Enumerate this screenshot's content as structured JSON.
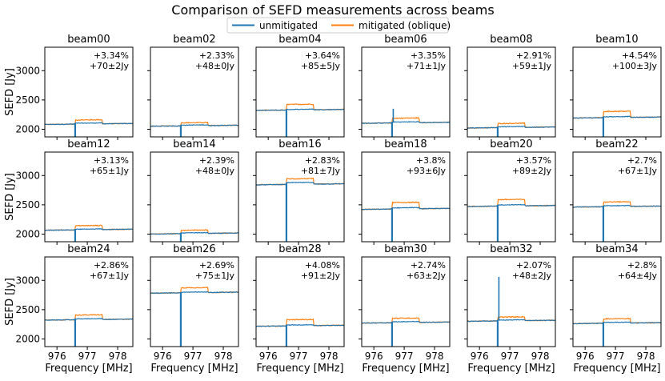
{
  "chart_data": {
    "type": "line",
    "title": "Comparison of SEFD measurements across beams",
    "xlabel": "Frequency [MHz]",
    "ylabel": "SEFD [Jy]",
    "xlim": [
      975.6,
      978.5
    ],
    "ylim": [
      1870,
      3400
    ],
    "xticks": [
      976,
      977,
      978
    ],
    "xtick_labels": [
      "976",
      "977",
      "978"
    ],
    "yticks": [
      2000,
      2500,
      3000
    ],
    "ytick_labels": [
      "2000",
      "2500",
      "3000"
    ],
    "grid": false,
    "legend": {
      "position": "top-center",
      "entries": [
        "unmitigated",
        "mitigated (oblique)"
      ]
    },
    "colors": {
      "unmitigated": "#1f77b4",
      "mitigated": "#ff7f0e"
    },
    "rfi_window_mhz": [
      976.6,
      977.5
    ],
    "rfi_notch_mhz": 976.6,
    "panels": [
      {
        "beam": "beam00",
        "pct": "+3.34%",
        "jy": "+70±2Jy",
        "baseline": 2090,
        "unmitigated": 2105,
        "mitigated": 2160,
        "spike": null
      },
      {
        "beam": "beam02",
        "pct": "+2.33%",
        "jy": "+48±0Jy",
        "baseline": 2060,
        "unmitigated": 2072,
        "mitigated": 2112,
        "spike": null
      },
      {
        "beam": "beam04",
        "pct": "+3.64%",
        "jy": "+85±5Jy",
        "baseline": 2330,
        "unmitigated": 2340,
        "mitigated": 2425,
        "spike": null
      },
      {
        "beam": "beam06",
        "pct": "+3.35%",
        "jy": "+71±1Jy",
        "baseline": 2110,
        "unmitigated": 2125,
        "mitigated": 2190,
        "spike": 2350
      },
      {
        "beam": "beam08",
        "pct": "+2.91%",
        "jy": "+59±1Jy",
        "baseline": 2030,
        "unmitigated": 2045,
        "mitigated": 2100,
        "spike": null
      },
      {
        "beam": "beam10",
        "pct": "+4.54%",
        "jy": "+100±3Jy",
        "baseline": 2200,
        "unmitigated": 2215,
        "mitigated": 2305,
        "spike": null
      },
      {
        "beam": "beam12",
        "pct": "+3.13%",
        "jy": "+65±1Jy",
        "baseline": 2075,
        "unmitigated": 2085,
        "mitigated": 2145,
        "spike": null
      },
      {
        "beam": "beam14",
        "pct": "+2.39%",
        "jy": "+48±0Jy",
        "baseline": 2010,
        "unmitigated": 2022,
        "mitigated": 2068,
        "spike": null
      },
      {
        "beam": "beam16",
        "pct": "+2.83%",
        "jy": "+81±7Jy",
        "baseline": 2850,
        "unmitigated": 2880,
        "mitigated": 2945,
        "spike": null
      },
      {
        "beam": "beam18",
        "pct": "+3.8%",
        "jy": "+93±6Jy",
        "baseline": 2430,
        "unmitigated": 2450,
        "mitigated": 2540,
        "spike": null
      },
      {
        "beam": "beam20",
        "pct": "+3.57%",
        "jy": "+89±2Jy",
        "baseline": 2480,
        "unmitigated": 2500,
        "mitigated": 2590,
        "spike": null
      },
      {
        "beam": "beam22",
        "pct": "+2.7%",
        "jy": "+67±1Jy",
        "baseline": 2470,
        "unmitigated": 2485,
        "mitigated": 2550,
        "spike": null
      },
      {
        "beam": "beam24",
        "pct": "+2.86%",
        "jy": "+67±1Jy",
        "baseline": 2330,
        "unmitigated": 2345,
        "mitigated": 2410,
        "spike": null
      },
      {
        "beam": "beam26",
        "pct": "+2.69%",
        "jy": "+75±1Jy",
        "baseline": 2790,
        "unmitigated": 2800,
        "mitigated": 2875,
        "spike": null
      },
      {
        "beam": "beam28",
        "pct": "+4.08%",
        "jy": "+91±2Jy",
        "baseline": 2225,
        "unmitigated": 2240,
        "mitigated": 2330,
        "spike": null
      },
      {
        "beam": "beam30",
        "pct": "+2.74%",
        "jy": "+63±2Jy",
        "baseline": 2280,
        "unmitigated": 2295,
        "mitigated": 2355,
        "spike": null
      },
      {
        "beam": "beam32",
        "pct": "+2.07%",
        "jy": "+48±2Jy",
        "baseline": 2310,
        "unmitigated": 2325,
        "mitigated": 2375,
        "spike": 3060
      },
      {
        "beam": "beam34",
        "pct": "+2.8%",
        "jy": "+64±4Jy",
        "baseline": 2270,
        "unmitigated": 2285,
        "mitigated": 2345,
        "spike": null
      }
    ]
  }
}
